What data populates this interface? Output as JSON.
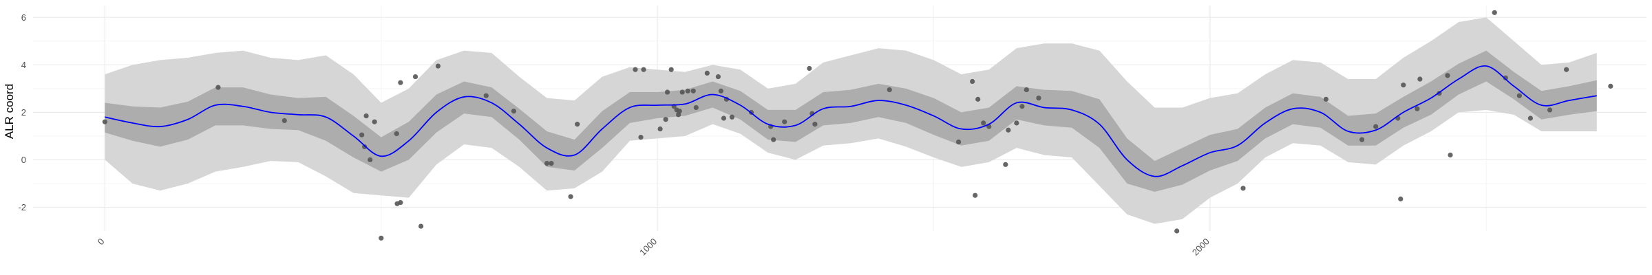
{
  "chart_data": {
    "type": "line",
    "title": "",
    "xlabel": "",
    "ylabel": "ALR coord",
    "xlim": [
      -130,
      2790
    ],
    "ylim": [
      -3.0,
      6.5
    ],
    "x_ticks": [
      0,
      1000,
      2000
    ],
    "x_tick_labels": [
      "0",
      "1000",
      "2000"
    ],
    "y_ticks": [
      -2,
      0,
      2,
      4,
      6
    ],
    "y_tick_labels": [
      "-2",
      "0",
      "2",
      "4",
      "6"
    ],
    "grid": true,
    "legend": "none",
    "colors": {
      "mean_line": "#0000ff",
      "inner_band": "#adadad",
      "outer_band": "#d6d6d6",
      "points": "#555555",
      "grid_major": "#ebebeb",
      "grid_minor": "#f5f5f5"
    },
    "mean": {
      "x": [
        0,
        50,
        100,
        150,
        200,
        250,
        300,
        350,
        400,
        450,
        500,
        550,
        600,
        650,
        700,
        750,
        800,
        850,
        900,
        950,
        1000,
        1050,
        1100,
        1150,
        1200,
        1250,
        1300,
        1350,
        1400,
        1450,
        1500,
        1550,
        1600,
        1650,
        1700,
        1750,
        1800,
        1850,
        1900,
        1950,
        2000,
        2050,
        2100,
        2150,
        2200,
        2250,
        2300,
        2350,
        2400,
        2450,
        2500,
        2550,
        2600,
        2650,
        2700
      ],
      "y": [
        1.8,
        1.55,
        1.4,
        1.7,
        2.3,
        2.25,
        2.0,
        1.9,
        1.8,
        1.0,
        0.15,
        0.8,
        2.0,
        2.65,
        2.4,
        1.5,
        0.5,
        0.2,
        1.3,
        2.2,
        2.3,
        2.35,
        2.75,
        2.3,
        1.5,
        1.45,
        2.15,
        2.25,
        2.5,
        2.3,
        1.85,
        1.3,
        1.5,
        2.4,
        2.2,
        2.1,
        1.5,
        0.0,
        -0.7,
        -0.25,
        0.3,
        0.6,
        1.55,
        2.15,
        2.0,
        1.2,
        1.25,
        2.0,
        2.6,
        3.4,
        3.95,
        3.1,
        2.3,
        2.5,
        2.7
      ]
    },
    "inner_band": {
      "lower": [
        1.15,
        0.8,
        0.55,
        0.85,
        1.45,
        1.45,
        1.3,
        1.25,
        0.8,
        0.1,
        -0.5,
        0.0,
        1.15,
        1.95,
        1.8,
        0.85,
        -0.3,
        -0.45,
        0.5,
        1.55,
        1.75,
        1.85,
        2.2,
        1.7,
        0.85,
        0.75,
        1.45,
        1.55,
        1.8,
        1.55,
        1.05,
        0.6,
        0.8,
        1.7,
        1.45,
        1.35,
        0.5,
        -1.0,
        -1.35,
        -1.05,
        -0.45,
        -0.05,
        0.9,
        1.5,
        1.35,
        0.6,
        0.6,
        1.35,
        1.9,
        2.75,
        3.3,
        2.55,
        1.7,
        1.9,
        2.05
      ],
      "upper": [
        2.4,
        2.25,
        2.2,
        2.45,
        3.05,
        3.05,
        2.75,
        2.6,
        2.65,
        1.85,
        0.95,
        1.6,
        2.75,
        3.3,
        3.05,
        2.15,
        1.2,
        0.85,
        2.05,
        2.85,
        2.85,
        2.95,
        3.3,
        2.9,
        2.1,
        2.1,
        2.85,
        2.95,
        3.2,
        3.0,
        2.6,
        2.0,
        2.2,
        3.1,
        2.95,
        2.9,
        2.55,
        0.9,
        -0.05,
        0.5,
        1.05,
        1.3,
        2.2,
        2.8,
        2.65,
        1.85,
        1.95,
        2.65,
        3.3,
        4.05,
        4.6,
        3.7,
        2.9,
        3.1,
        3.35
      ]
    },
    "outer_band": {
      "lower": [
        0.0,
        -1.0,
        -1.3,
        -1.0,
        -0.5,
        -0.3,
        -0.05,
        -0.1,
        -0.7,
        -1.4,
        -1.5,
        -1.6,
        -0.2,
        0.65,
        0.5,
        -0.3,
        -1.3,
        -1.2,
        -0.5,
        0.8,
        0.9,
        1.0,
        1.5,
        1.1,
        0.3,
        0.0,
        0.6,
        0.7,
        0.9,
        0.55,
        0.1,
        -0.3,
        -0.1,
        0.5,
        0.2,
        0.1,
        -1.1,
        -2.3,
        -2.7,
        -2.5,
        -1.6,
        -1.0,
        0.1,
        0.7,
        0.6,
        -0.1,
        -0.2,
        0.6,
        1.2,
        2.0,
        2.1,
        1.9,
        1.2,
        1.2,
        1.2
      ],
      "upper": [
        3.6,
        4.0,
        4.2,
        4.3,
        4.5,
        4.6,
        4.3,
        4.2,
        4.4,
        3.6,
        2.4,
        3.0,
        4.2,
        4.6,
        4.5,
        3.5,
        2.6,
        2.5,
        3.5,
        3.9,
        3.8,
        3.7,
        4.0,
        3.8,
        3.0,
        3.2,
        4.1,
        4.4,
        4.7,
        4.6,
        4.2,
        3.6,
        3.8,
        4.7,
        4.9,
        4.9,
        4.6,
        3.3,
        2.2,
        2.2,
        2.6,
        2.8,
        3.6,
        4.2,
        4.1,
        3.4,
        3.4,
        4.3,
        5.0,
        5.8,
        6.0,
        5.0,
        4.0,
        4.1,
        4.5
      ]
    },
    "points": [
      {
        "x": 0,
        "y": 1.6
      },
      {
        "x": 205,
        "y": 3.05
      },
      {
        "x": 325,
        "y": 1.65
      },
      {
        "x": 465,
        "y": 1.05
      },
      {
        "x": 470,
        "y": 0.55
      },
      {
        "x": 473,
        "y": 1.85
      },
      {
        "x": 480,
        "y": 0.0
      },
      {
        "x": 488,
        "y": 1.6
      },
      {
        "x": 500,
        "y": -3.3
      },
      {
        "x": 528,
        "y": 1.1
      },
      {
        "x": 529,
        "y": -1.85
      },
      {
        "x": 535,
        "y": -1.8
      },
      {
        "x": 535,
        "y": 3.25
      },
      {
        "x": 562,
        "y": 3.5
      },
      {
        "x": 572,
        "y": -2.8
      },
      {
        "x": 603,
        "y": 3.95
      },
      {
        "x": 690,
        "y": 2.7
      },
      {
        "x": 740,
        "y": 2.05
      },
      {
        "x": 800,
        "y": -0.15
      },
      {
        "x": 808,
        "y": -0.15
      },
      {
        "x": 843,
        "y": -1.55
      },
      {
        "x": 855,
        "y": 1.5
      },
      {
        "x": 960,
        "y": 3.8
      },
      {
        "x": 970,
        "y": 0.95
      },
      {
        "x": 975,
        "y": 3.8
      },
      {
        "x": 1005,
        "y": 1.3
      },
      {
        "x": 1015,
        "y": 1.7
      },
      {
        "x": 1018,
        "y": 2.85
      },
      {
        "x": 1025,
        "y": 3.8
      },
      {
        "x": 1030,
        "y": 2.25
      },
      {
        "x": 1035,
        "y": 2.1
      },
      {
        "x": 1038,
        "y": 1.9
      },
      {
        "x": 1040,
        "y": 2.05
      },
      {
        "x": 1045,
        "y": 2.85
      },
      {
        "x": 1055,
        "y": 2.9
      },
      {
        "x": 1065,
        "y": 2.9
      },
      {
        "x": 1070,
        "y": 2.2
      },
      {
        "x": 1090,
        "y": 3.65
      },
      {
        "x": 1110,
        "y": 3.5
      },
      {
        "x": 1115,
        "y": 2.9
      },
      {
        "x": 1120,
        "y": 1.75
      },
      {
        "x": 1125,
        "y": 2.55
      },
      {
        "x": 1135,
        "y": 1.8
      },
      {
        "x": 1170,
        "y": 2.0
      },
      {
        "x": 1205,
        "y": 1.4
      },
      {
        "x": 1210,
        "y": 0.85
      },
      {
        "x": 1230,
        "y": 1.6
      },
      {
        "x": 1275,
        "y": 3.85
      },
      {
        "x": 1280,
        "y": 1.95
      },
      {
        "x": 1285,
        "y": 1.5
      },
      {
        "x": 1420,
        "y": 2.95
      },
      {
        "x": 1545,
        "y": 0.75
      },
      {
        "x": 1570,
        "y": 3.3
      },
      {
        "x": 1575,
        "y": -1.5
      },
      {
        "x": 1580,
        "y": 2.55
      },
      {
        "x": 1590,
        "y": 1.55
      },
      {
        "x": 1600,
        "y": 1.4
      },
      {
        "x": 1630,
        "y": -0.2
      },
      {
        "x": 1635,
        "y": 1.25
      },
      {
        "x": 1650,
        "y": 1.55
      },
      {
        "x": 1660,
        "y": 2.25
      },
      {
        "x": 1668,
        "y": 2.95
      },
      {
        "x": 1690,
        "y": 2.6
      },
      {
        "x": 1940,
        "y": -3.0
      },
      {
        "x": 2060,
        "y": -1.2
      },
      {
        "x": 2210,
        "y": 2.55
      },
      {
        "x": 2275,
        "y": 0.85
      },
      {
        "x": 2300,
        "y": 1.4
      },
      {
        "x": 2340,
        "y": 1.75
      },
      {
        "x": 2345,
        "y": -1.65
      },
      {
        "x": 2350,
        "y": 3.15
      },
      {
        "x": 2375,
        "y": 2.15
      },
      {
        "x": 2380,
        "y": 3.4
      },
      {
        "x": 2415,
        "y": 2.8
      },
      {
        "x": 2430,
        "y": 3.55
      },
      {
        "x": 2435,
        "y": 0.2
      },
      {
        "x": 2515,
        "y": 6.2
      },
      {
        "x": 2535,
        "y": 3.45
      },
      {
        "x": 2560,
        "y": 2.7
      },
      {
        "x": 2580,
        "y": 1.75
      },
      {
        "x": 2615,
        "y": 2.1
      },
      {
        "x": 2645,
        "y": 3.8
      },
      {
        "x": 2725,
        "y": 3.1
      }
    ]
  }
}
